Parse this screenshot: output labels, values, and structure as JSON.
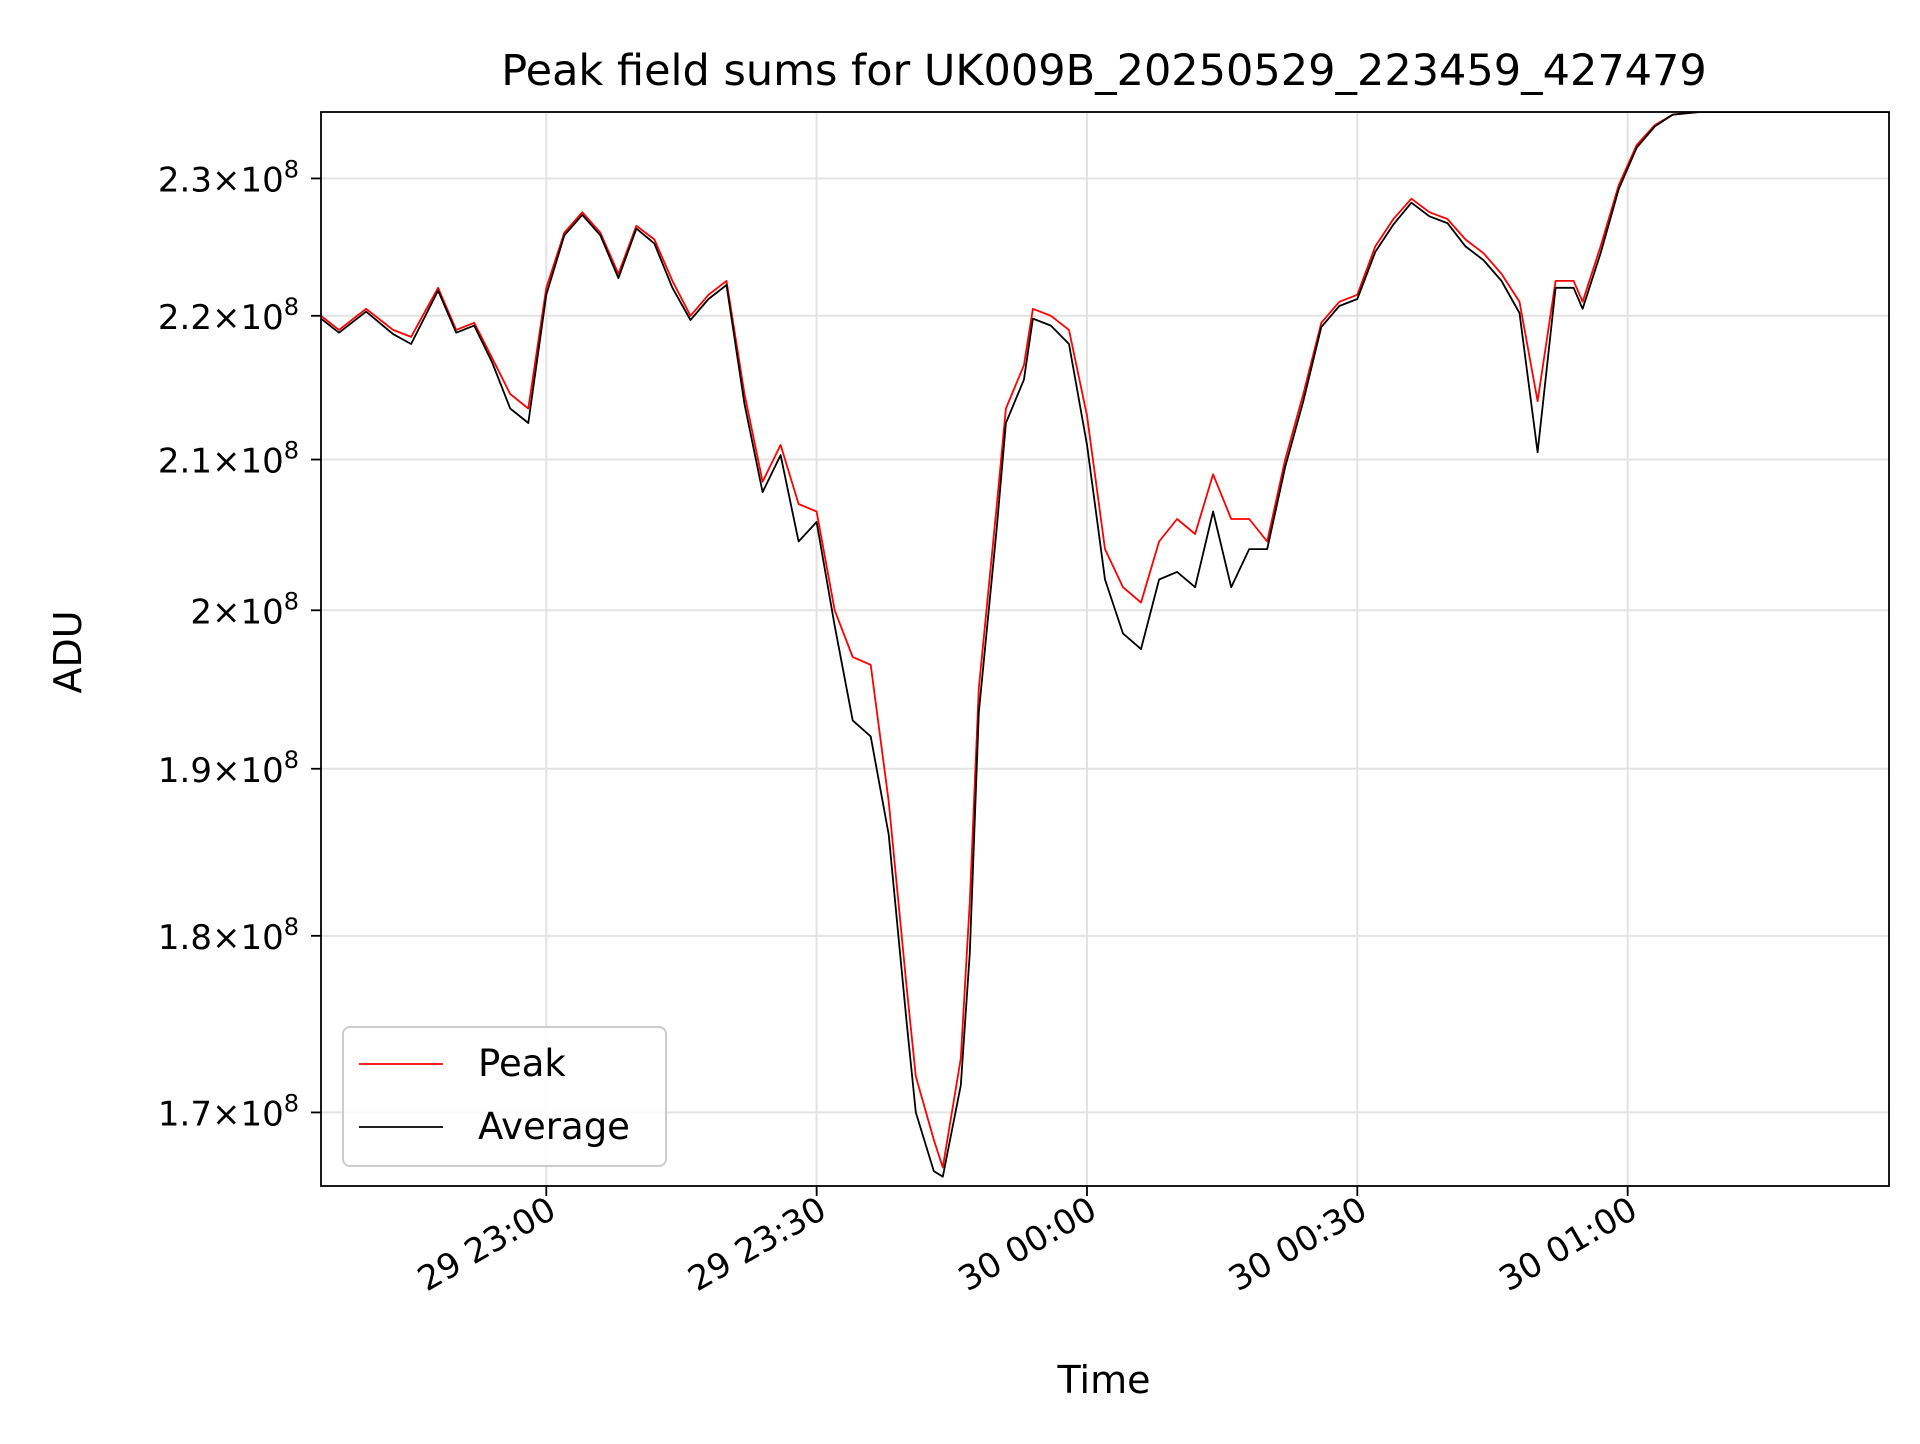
{
  "chart_data": {
    "type": "line",
    "title": "Peak field sums for UK009B_20250529_223459_427479",
    "xlabel": "Time",
    "ylabel": "ADU",
    "y_scale": "log",
    "xlim": [
      "2025-05-29 22:35",
      "2025-05-30 01:29"
    ],
    "ylim": [
      166000000,
      235000000
    ],
    "x_ticks": [
      "2025-05-29 23:00",
      "2025-05-29 23:30",
      "2025-05-30 00:00",
      "2025-05-30 00:30",
      "2025-05-30 01:00"
    ],
    "x_tick_labels": [
      "29 23:00",
      "29 23:30",
      "30 00:00",
      "30 00:30",
      "30 01:00"
    ],
    "y_ticks": [
      170000000,
      180000000,
      190000000,
      200000000,
      210000000,
      220000000,
      230000000
    ],
    "y_tick_labels": [
      {
        "mantissa": "1.7",
        "base": "10",
        "exp": "8"
      },
      {
        "mantissa": "1.8",
        "base": "10",
        "exp": "8"
      },
      {
        "mantissa": "1.9",
        "base": "10",
        "exp": "8"
      },
      {
        "mantissa": "2",
        "base": "10",
        "exp": "8"
      },
      {
        "mantissa": "2.1",
        "base": "10",
        "exp": "8"
      },
      {
        "mantissa": "2.2",
        "base": "10",
        "exp": "8"
      },
      {
        "mantissa": "2.3",
        "base": "10",
        "exp": "8"
      }
    ],
    "grid": true,
    "legend_position": "lower-left",
    "series": [
      {
        "name": "Peak",
        "color": "#ff0000",
        "x": [
          "2025-05-29 22:35",
          "2025-05-29 22:37",
          "2025-05-29 22:40",
          "2025-05-29 22:43",
          "2025-05-29 22:45",
          "2025-05-29 22:48",
          "2025-05-29 22:50",
          "2025-05-29 22:52",
          "2025-05-29 22:54",
          "2025-05-29 22:56",
          "2025-05-29 22:58",
          "2025-05-29 23:00",
          "2025-05-29 23:02",
          "2025-05-29 23:04",
          "2025-05-29 23:06",
          "2025-05-29 23:08",
          "2025-05-29 23:10",
          "2025-05-29 23:12",
          "2025-05-29 23:14",
          "2025-05-29 23:16",
          "2025-05-29 23:18",
          "2025-05-29 23:20",
          "2025-05-29 23:22",
          "2025-05-29 23:24",
          "2025-05-29 23:26",
          "2025-05-29 23:28",
          "2025-05-29 23:30",
          "2025-05-29 23:32",
          "2025-05-29 23:34",
          "2025-05-29 23:36",
          "2025-05-29 23:38",
          "2025-05-29 23:40",
          "2025-05-29 23:41",
          "2025-05-29 23:43",
          "2025-05-29 23:44",
          "2025-05-29 23:46",
          "2025-05-29 23:47",
          "2025-05-29 23:48",
          "2025-05-29 23:50",
          "2025-05-29 23:51",
          "2025-05-29 23:53",
          "2025-05-29 23:54",
          "2025-05-29 23:56",
          "2025-05-29 23:58",
          "2025-05-30 00:00",
          "2025-05-30 00:02",
          "2025-05-30 00:04",
          "2025-05-30 00:06",
          "2025-05-30 00:08",
          "2025-05-30 00:10",
          "2025-05-30 00:12",
          "2025-05-30 00:14",
          "2025-05-30 00:16",
          "2025-05-30 00:18",
          "2025-05-30 00:20",
          "2025-05-30 00:22",
          "2025-05-30 00:24",
          "2025-05-30 00:26",
          "2025-05-30 00:28",
          "2025-05-30 00:30",
          "2025-05-30 00:32",
          "2025-05-30 00:34",
          "2025-05-30 00:36",
          "2025-05-30 00:38",
          "2025-05-30 00:40",
          "2025-05-30 00:42",
          "2025-05-30 00:44",
          "2025-05-30 00:46",
          "2025-05-30 00:48",
          "2025-05-30 00:50",
          "2025-05-30 00:52",
          "2025-05-30 00:54",
          "2025-05-30 00:55",
          "2025-05-30 00:57",
          "2025-05-30 00:59",
          "2025-05-30 01:01",
          "2025-05-30 01:03",
          "2025-05-30 01:05",
          "2025-05-30 01:08",
          "2025-05-30 01:12",
          "2025-05-30 01:20",
          "2025-05-30 01:29"
        ],
        "values": [
          220000000,
          219000000,
          220500000,
          219000000,
          218500000,
          222000000,
          219000000,
          219500000,
          217000000,
          214500000,
          213500000,
          222000000,
          226000000,
          227500000,
          226000000,
          223000000,
          226500000,
          225500000,
          222500000,
          220000000,
          221500000,
          222500000,
          214500000,
          208500000,
          211000000,
          207000000,
          206500000,
          200000000,
          197000000,
          196500000,
          188000000,
          177000000,
          172000000,
          168500000,
          167000000,
          173000000,
          182000000,
          195000000,
          207000000,
          213500000,
          216500000,
          220500000,
          220000000,
          219000000,
          213000000,
          204000000,
          201500000,
          200500000,
          204500000,
          206000000,
          205000000,
          209000000,
          206000000,
          206000000,
          204500000,
          210000000,
          214500000,
          219500000,
          221000000,
          221500000,
          225000000,
          227000000,
          228500000,
          227500000,
          227000000,
          225500000,
          224500000,
          223000000,
          221000000,
          214000000,
          222500000,
          222500000,
          221000000,
          225000000,
          229500000,
          232500000,
          234000000,
          234800000,
          235000000,
          235000000,
          235000000,
          235000000
        ]
      },
      {
        "name": "Average",
        "color": "#000000",
        "x": [
          "2025-05-29 22:35",
          "2025-05-29 22:37",
          "2025-05-29 22:40",
          "2025-05-29 22:43",
          "2025-05-29 22:45",
          "2025-05-29 22:48",
          "2025-05-29 22:50",
          "2025-05-29 22:52",
          "2025-05-29 22:54",
          "2025-05-29 22:56",
          "2025-05-29 22:58",
          "2025-05-29 23:00",
          "2025-05-29 23:02",
          "2025-05-29 23:04",
          "2025-05-29 23:06",
          "2025-05-29 23:08",
          "2025-05-29 23:10",
          "2025-05-29 23:12",
          "2025-05-29 23:14",
          "2025-05-29 23:16",
          "2025-05-29 23:18",
          "2025-05-29 23:20",
          "2025-05-29 23:22",
          "2025-05-29 23:24",
          "2025-05-29 23:26",
          "2025-05-29 23:28",
          "2025-05-29 23:30",
          "2025-05-29 23:32",
          "2025-05-29 23:34",
          "2025-05-29 23:36",
          "2025-05-29 23:38",
          "2025-05-29 23:40",
          "2025-05-29 23:41",
          "2025-05-29 23:43",
          "2025-05-29 23:44",
          "2025-05-29 23:46",
          "2025-05-29 23:47",
          "2025-05-29 23:48",
          "2025-05-29 23:50",
          "2025-05-29 23:51",
          "2025-05-29 23:53",
          "2025-05-29 23:54",
          "2025-05-29 23:56",
          "2025-05-29 23:58",
          "2025-05-30 00:00",
          "2025-05-30 00:02",
          "2025-05-30 00:04",
          "2025-05-30 00:06",
          "2025-05-30 00:08",
          "2025-05-30 00:10",
          "2025-05-30 00:12",
          "2025-05-30 00:14",
          "2025-05-30 00:16",
          "2025-05-30 00:18",
          "2025-05-30 00:20",
          "2025-05-30 00:22",
          "2025-05-30 00:24",
          "2025-05-30 00:26",
          "2025-05-30 00:28",
          "2025-05-30 00:30",
          "2025-05-30 00:32",
          "2025-05-30 00:34",
          "2025-05-30 00:36",
          "2025-05-30 00:38",
          "2025-05-30 00:40",
          "2025-05-30 00:42",
          "2025-05-30 00:44",
          "2025-05-30 00:46",
          "2025-05-30 00:48",
          "2025-05-30 00:50",
          "2025-05-30 00:52",
          "2025-05-30 00:54",
          "2025-05-30 00:55",
          "2025-05-30 00:57",
          "2025-05-30 00:59",
          "2025-05-30 01:01",
          "2025-05-30 01:03",
          "2025-05-30 01:05",
          "2025-05-30 01:08",
          "2025-05-30 01:12",
          "2025-05-30 01:20",
          "2025-05-30 01:29"
        ],
        "values": [
          219800000,
          218800000,
          220300000,
          218700000,
          218000000,
          221800000,
          218800000,
          219300000,
          216700000,
          213500000,
          212500000,
          221500000,
          225800000,
          227300000,
          225800000,
          222700000,
          226300000,
          225200000,
          222000000,
          219700000,
          221200000,
          222200000,
          213800000,
          207800000,
          210300000,
          204500000,
          205800000,
          199000000,
          193000000,
          192000000,
          186000000,
          175000000,
          170000000,
          166800000,
          166500000,
          171500000,
          179000000,
          193500000,
          205500000,
          212500000,
          215500000,
          219800000,
          219300000,
          218000000,
          211000000,
          202000000,
          198500000,
          197500000,
          202000000,
          202500000,
          201500000,
          206500000,
          201500000,
          204000000,
          204000000,
          209500000,
          214000000,
          219200000,
          220700000,
          221200000,
          224600000,
          226600000,
          228200000,
          227200000,
          226700000,
          225000000,
          224000000,
          222500000,
          220200000,
          210500000,
          222000000,
          222000000,
          220500000,
          224500000,
          229200000,
          232300000,
          233900000,
          234800000,
          235000000,
          235000000,
          235000000,
          235000000
        ]
      }
    ]
  }
}
